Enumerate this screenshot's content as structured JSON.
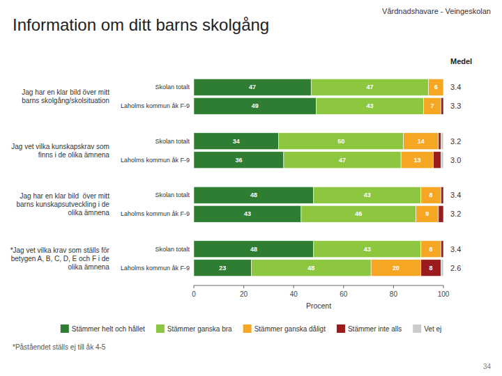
{
  "chart_data": {
    "type": "bar",
    "orientation": "horizontal",
    "stacked": true,
    "data_labels": true,
    "grid": false,
    "legend": "bottom",
    "title": "Information om ditt barns skolgång",
    "subtitle": "Vårdnadshavare - Veingeskolan",
    "xlabel": "Procent",
    "footnote": "*Påståendet ställs ej till åk 4-5",
    "page_number": "34",
    "medel_label": "Medel",
    "groups": [
      {
        "label": "Jag har en klar bild över mitt\nbarns skolgång/skolsituation",
        "categories": [
          "Skolan totalt",
          "Laholms kommun åk F-9"
        ]
      },
      {
        "label": "Jag vet vilka kunskapskrav som\nfinns i de olika ämnena",
        "categories": [
          "Skolan totalt",
          "Laholms kommun åk F-9"
        ]
      },
      {
        "label": "Jag har en klar bild  över mitt\nbarns kunskapsutveckling i de\nolika ämnena",
        "categories": [
          "Skolan totalt",
          "Laholms kommun åk F-9"
        ]
      },
      {
        "label": "*Jag vet vilka krav som ställs för\nbetygen A, B, C, D, E och F i de\nolika ämnena",
        "categories": [
          "Skolan totalt",
          "Laholms kommun åk F-9"
        ]
      }
    ],
    "medel_values": [
      "3.4",
      "3.3",
      "3.2",
      "3.0",
      "3.4",
      "3.2",
      "3.4",
      "2.6"
    ],
    "series": [
      {
        "name": "Stämmer helt och hållet",
        "color": "#2e7d32",
        "values": [
          47,
          49,
          34,
          36,
          48,
          43,
          48,
          23
        ],
        "value_labels": [
          "47",
          "49",
          "34",
          "36",
          "48",
          "43",
          "48",
          "23"
        ]
      },
      {
        "name": "Stämmer ganska bra",
        "color": "#8dc63f",
        "values": [
          47,
          43,
          50,
          47,
          43,
          46,
          43,
          48
        ],
        "value_labels": [
          "47",
          "43",
          "50",
          "47",
          "43",
          "46",
          "43",
          "48"
        ]
      },
      {
        "name": "Stämmer ganska dåligt",
        "color": "#f5a623",
        "values": [
          6,
          7,
          14,
          13,
          8,
          9,
          8,
          20
        ],
        "value_labels": [
          "6",
          "7",
          "14",
          "13",
          "8",
          "9",
          "8",
          "20"
        ]
      },
      {
        "name": "Stämmer inte alls",
        "color": "#9b1c1c",
        "values": [
          0,
          1,
          1,
          3,
          1,
          2,
          1,
          8
        ],
        "value_labels": [
          null,
          null,
          null,
          null,
          null,
          null,
          null,
          "8"
        ]
      },
      {
        "name": "Vet ej",
        "color": "#cccccc",
        "values": [
          0,
          0,
          1,
          1,
          0,
          0,
          0,
          1
        ],
        "value_labels": [
          null,
          null,
          null,
          null,
          null,
          null,
          null,
          null
        ]
      }
    ],
    "xlim": [
      0,
      100
    ],
    "xticks": [
      0,
      20,
      40,
      60,
      80,
      100
    ]
  }
}
